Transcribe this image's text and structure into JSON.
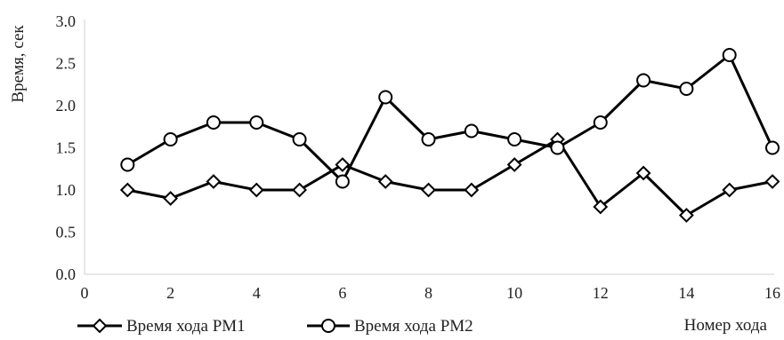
{
  "chart_data": {
    "type": "line",
    "title": "",
    "xlabel": "Номер хода",
    "ylabel": "Время, сек",
    "xlim": [
      0,
      16
    ],
    "ylim": [
      0,
      3
    ],
    "x_ticks": [
      0,
      2,
      4,
      6,
      8,
      10,
      12,
      14,
      16
    ],
    "y_ticks": [
      "0.0",
      "0.5",
      "1.0",
      "1.5",
      "2.0",
      "2.5",
      "3.0"
    ],
    "grid": false,
    "legend_position": "bottom-left",
    "series": [
      {
        "name": "Время хода РМ1",
        "marker": "diamond",
        "color": "#000000",
        "x": [
          1,
          2,
          3,
          4,
          5,
          6,
          7,
          8,
          9,
          10,
          11,
          12,
          13,
          14,
          15,
          16
        ],
        "y": [
          1.0,
          0.9,
          1.1,
          1.0,
          1.0,
          1.3,
          1.1,
          1.0,
          1.0,
          1.3,
          1.6,
          0.8,
          1.2,
          0.7,
          1.0,
          1.1
        ]
      },
      {
        "name": "Время хода РМ2",
        "marker": "circle",
        "color": "#000000",
        "x": [
          1,
          2,
          3,
          4,
          5,
          6,
          7,
          8,
          9,
          10,
          11,
          12,
          13,
          14,
          15,
          16
        ],
        "y": [
          1.3,
          1.6,
          1.8,
          1.8,
          1.6,
          1.1,
          2.1,
          1.6,
          1.7,
          1.6,
          1.5,
          1.8,
          2.3,
          2.2,
          2.6,
          1.5
        ]
      }
    ]
  }
}
